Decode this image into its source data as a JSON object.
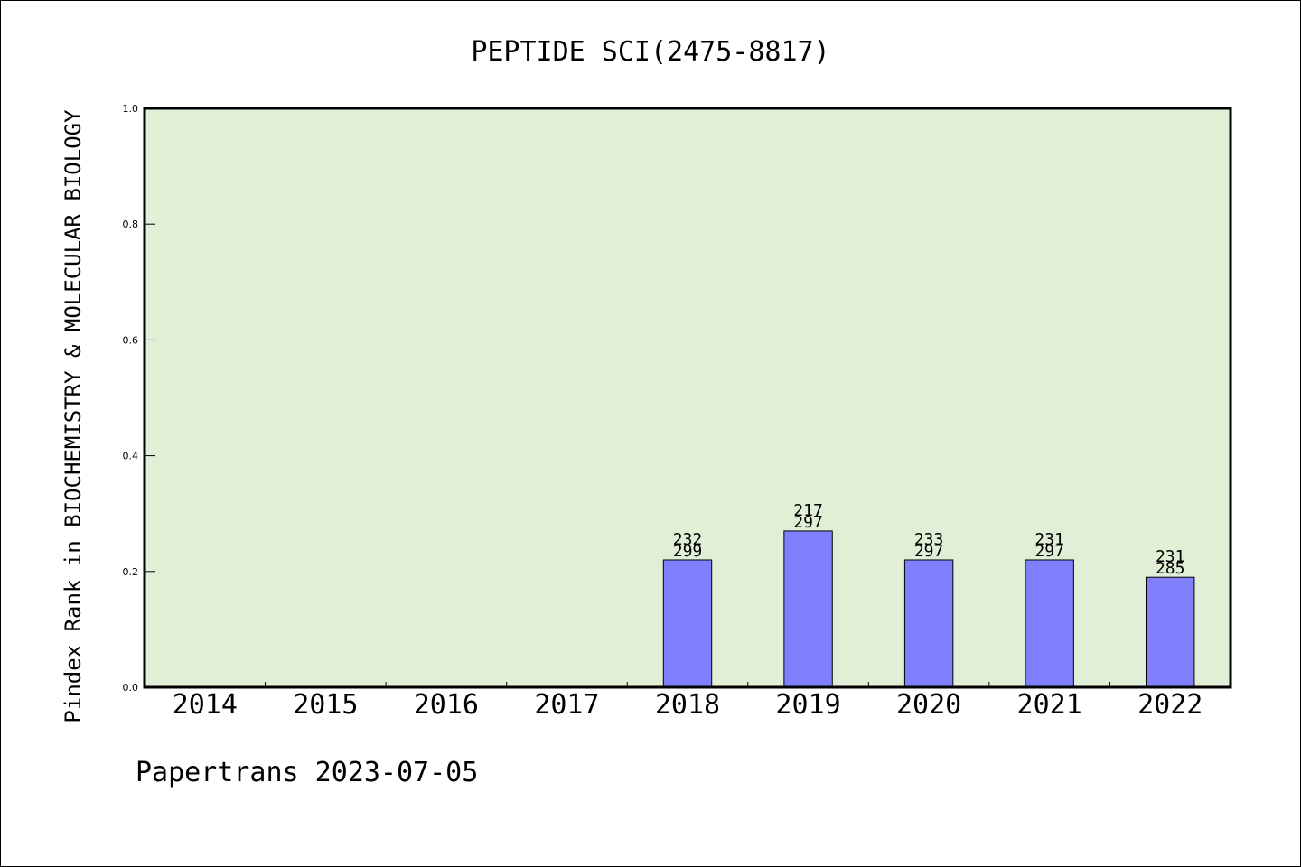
{
  "colors": {
    "plot_background": "#e1efd6",
    "bar_fill": "#8080ff",
    "bar_stroke": "#000000",
    "axis": "#000000"
  },
  "footer": {
    "text": "Papertrans 2023-07-05"
  },
  "chart_data": {
    "type": "bar",
    "title": "PEPTIDE SCI(2475-8817)",
    "xlabel": "",
    "ylabel": "Pindex Rank in BIOCHEMISTRY & MOLECULAR BIOLOGY",
    "ylim": [
      0.0,
      1.0
    ],
    "yticks": [
      0.0,
      0.2,
      0.4,
      0.6,
      0.8,
      1.0
    ],
    "ytick_labels": [
      "0.0",
      "0.2",
      "0.4",
      "0.6",
      "0.8",
      "1.0"
    ],
    "grid": false,
    "categories": [
      "2014",
      "2015",
      "2016",
      "2017",
      "2018",
      "2019",
      "2020",
      "2021",
      "2022"
    ],
    "values": [
      null,
      null,
      null,
      null,
      0.22,
      0.27,
      0.22,
      0.22,
      0.19
    ],
    "rank_labels": [
      null,
      null,
      null,
      null,
      "232",
      "217",
      "233",
      "231",
      "231"
    ],
    "total_labels": [
      null,
      null,
      null,
      null,
      "299",
      "297",
      "297",
      "297",
      "285"
    ]
  }
}
